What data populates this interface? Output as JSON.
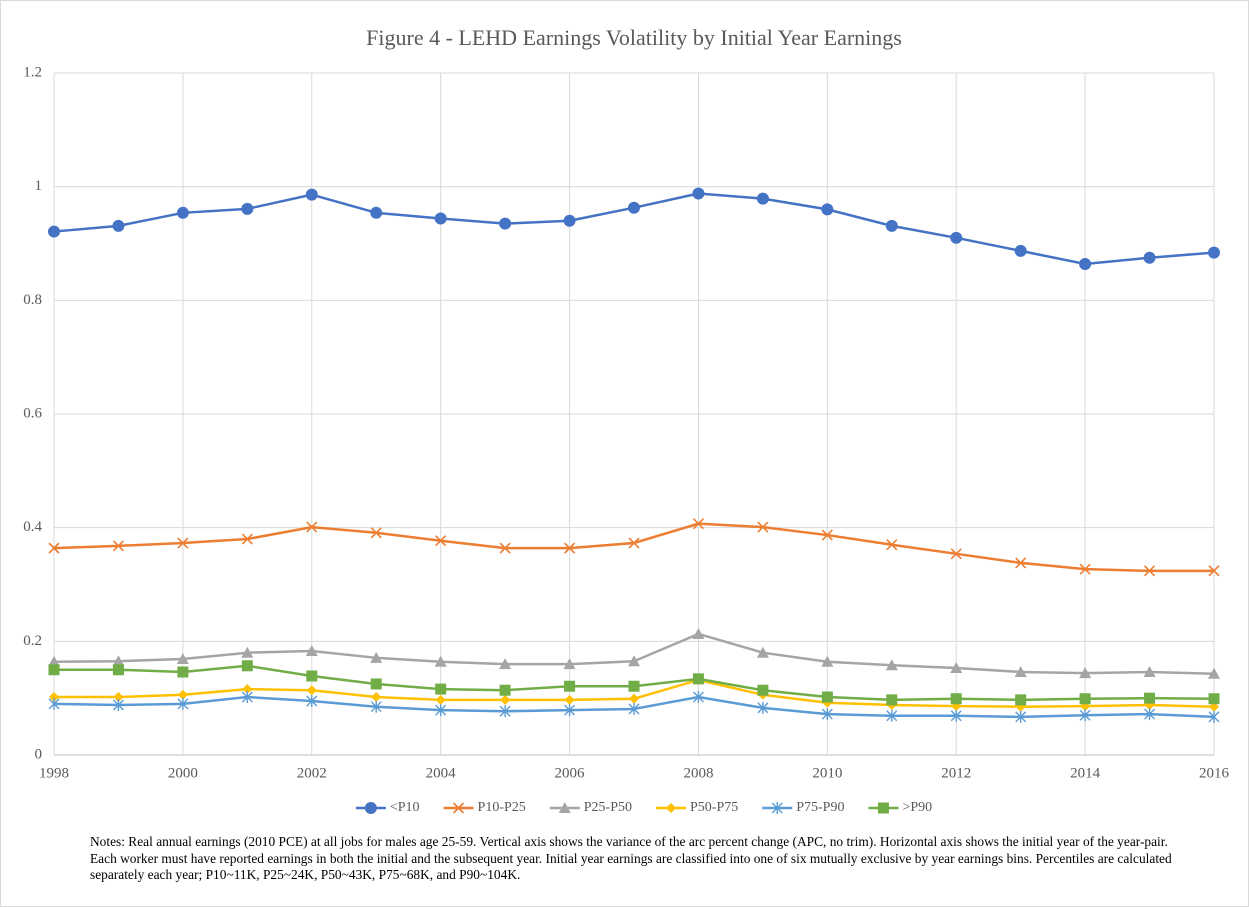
{
  "chart_data": {
    "type": "line",
    "title": "Figure 4 - LEHD Earnings Volatility by Initial Year Earnings",
    "x": [
      1998,
      1999,
      2000,
      2001,
      2002,
      2003,
      2004,
      2005,
      2006,
      2007,
      2008,
      2009,
      2010,
      2011,
      2012,
      2013,
      2014,
      2015,
      2016
    ],
    "xlim": [
      1998,
      2016
    ],
    "xticks": [
      1998,
      2000,
      2002,
      2004,
      2006,
      2008,
      2010,
      2012,
      2014,
      2016
    ],
    "ylim": [
      0,
      1.2
    ],
    "yticks": [
      0,
      0.2,
      0.4,
      0.6,
      0.8,
      1,
      1.2
    ],
    "grid": true,
    "legend": "bottom",
    "series": [
      {
        "name": "<P10",
        "color": "#4472c4",
        "marker": "circle",
        "values": [
          0.921,
          0.931,
          0.954,
          0.961,
          0.986,
          0.954,
          0.944,
          0.935,
          0.94,
          0.963,
          0.988,
          0.979,
          0.96,
          0.931,
          0.91,
          0.887,
          0.864,
          0.875,
          0.884
        ]
      },
      {
        "name": "P10-P25",
        "color": "#ed7d31",
        "marker": "x",
        "values": [
          0.364,
          0.368,
          0.373,
          0.38,
          0.401,
          0.391,
          0.377,
          0.364,
          0.364,
          0.373,
          0.407,
          0.401,
          0.387,
          0.37,
          0.354,
          0.338,
          0.327,
          0.324,
          0.324
        ]
      },
      {
        "name": "P25-P50",
        "color": "#a5a5a5",
        "marker": "triangle",
        "values": [
          0.164,
          0.165,
          0.169,
          0.18,
          0.183,
          0.171,
          0.164,
          0.16,
          0.16,
          0.165,
          0.213,
          0.18,
          0.164,
          0.158,
          0.153,
          0.146,
          0.144,
          0.146,
          0.143
        ]
      },
      {
        "name": "P50-P75",
        "color": "#ffc000",
        "marker": "diamond",
        "values": [
          0.102,
          0.102,
          0.106,
          0.116,
          0.114,
          0.102,
          0.097,
          0.097,
          0.097,
          0.099,
          0.132,
          0.106,
          0.092,
          0.088,
          0.086,
          0.085,
          0.086,
          0.088,
          0.085
        ]
      },
      {
        "name": "P75-P90",
        "color": "#5b9bd5",
        "marker": "asterisk",
        "values": [
          0.09,
          0.088,
          0.09,
          0.102,
          0.095,
          0.085,
          0.079,
          0.077,
          0.079,
          0.081,
          0.102,
          0.083,
          0.072,
          0.069,
          0.069,
          0.067,
          0.07,
          0.072,
          0.067
        ]
      },
      {
        "name": ">P90",
        "color": "#70ad47",
        "marker": "square",
        "values": [
          0.15,
          0.15,
          0.146,
          0.157,
          0.139,
          0.125,
          0.116,
          0.114,
          0.121,
          0.121,
          0.134,
          0.114,
          0.102,
          0.097,
          0.099,
          0.097,
          0.099,
          0.1,
          0.099
        ]
      }
    ],
    "notes": "Notes: Real annual earnings (2010 PCE) at all jobs for males age 25-59. Vertical axis shows the variance of the arc percent change (APC, no trim). Horizontal axis shows the initial year of the year-pair. Each worker must have reported earnings in both the initial and the subsequent year. Initial year earnings are classified into one of six mutually exclusive by year earnings bins. Percentiles are calculated separately each year; P10~11K, P25~24K, P50~43K, P75~68K, and P90~104K."
  }
}
